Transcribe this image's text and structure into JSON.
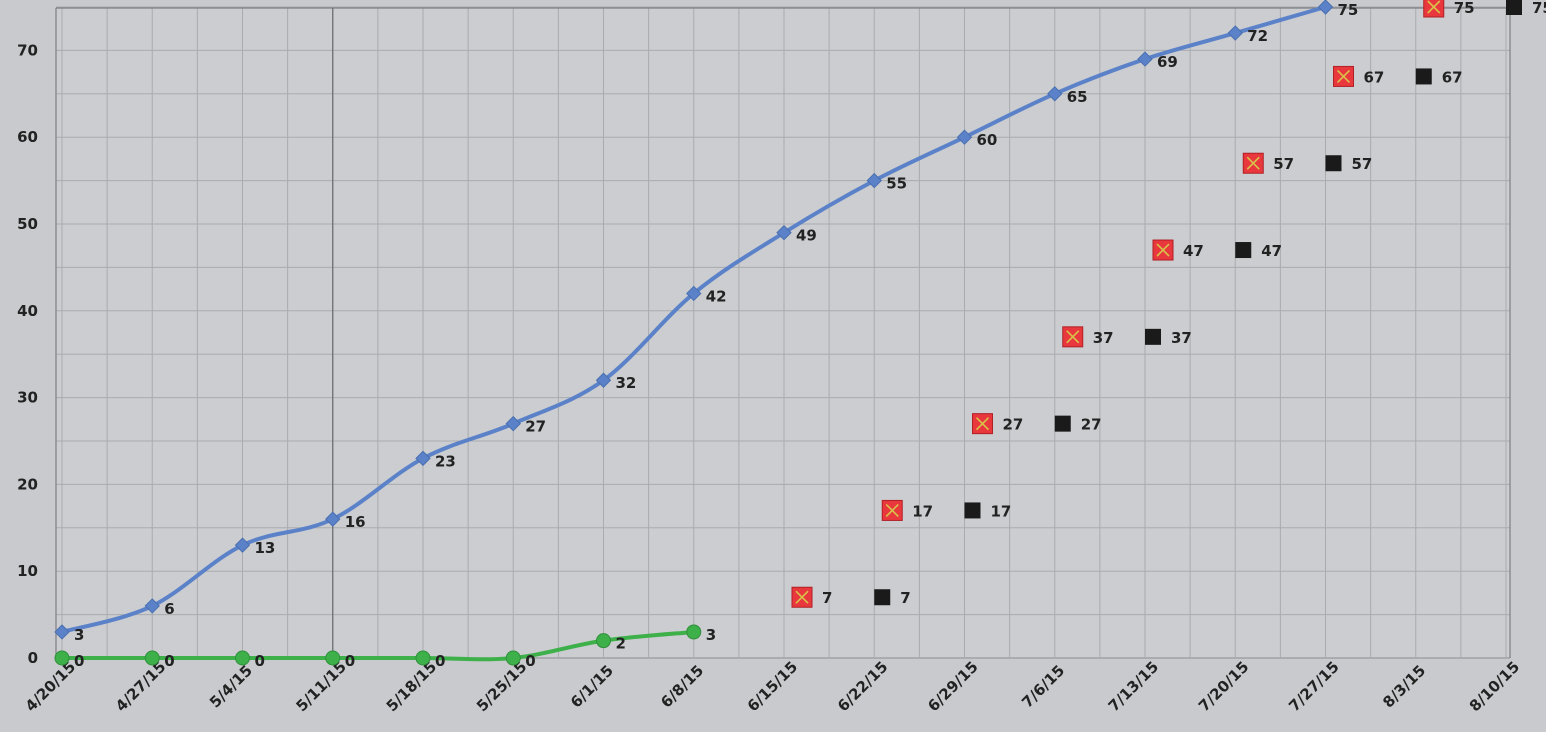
{
  "chart_data": {
    "type": "line",
    "categories": [
      "4/20/15",
      "4/27/15",
      "5/4/15",
      "5/11/15",
      "5/18/15",
      "5/25/15",
      "6/1/15",
      "6/8/15",
      "6/15/15",
      "6/22/15",
      "6/29/15",
      "7/6/15",
      "7/13/15",
      "7/20/15",
      "7/27/15",
      "8/3/15",
      "8/10/15"
    ],
    "ylim": [
      0,
      75
    ],
    "yticks": [
      0,
      10,
      20,
      30,
      40,
      50,
      60,
      70
    ],
    "grid": true,
    "series": [
      {
        "style": "line",
        "marker": "diamond",
        "color": "#5b82c9",
        "values": [
          3,
          6,
          13,
          16,
          23,
          27,
          32,
          42,
          49,
          55,
          60,
          65,
          69,
          72,
          75,
          null,
          null
        ]
      },
      {
        "style": "line",
        "marker": "circle",
        "color": "#3db04a",
        "values": [
          0,
          0,
          0,
          0,
          0,
          0,
          2,
          3,
          null,
          null,
          null,
          null,
          null,
          null,
          null,
          null,
          null
        ]
      },
      {
        "style": "markers",
        "marker": "x-square",
        "color": "#e8383d",
        "values": [
          null,
          null,
          null,
          null,
          null,
          null,
          null,
          null,
          7,
          17,
          27,
          37,
          47,
          57,
          67,
          75,
          null
        ]
      },
      {
        "style": "markers",
        "marker": "square",
        "color": "#1a1a1a",
        "values": [
          null,
          null,
          null,
          null,
          null,
          null,
          null,
          null,
          null,
          7,
          17,
          27,
          37,
          47,
          57,
          67,
          75
        ]
      }
    ]
  }
}
